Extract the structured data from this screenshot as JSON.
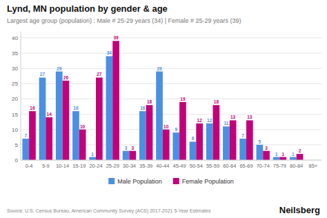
{
  "chart_data": {
    "type": "bar",
    "title": "Lynd, MN population by gender & age",
    "subtitle": "Largest age group (population) : Male # 25-29 years (34) | Female # 25-29 years (39)",
    "categories": [
      "0-4",
      "5-9",
      "10-14",
      "15-19",
      "20-24",
      "25-29",
      "30-34",
      "35-39",
      "40-44",
      "45-49",
      "50-54",
      "55-59",
      "60-64",
      "65-69",
      "70-74",
      "75-79",
      "80-84",
      "85+"
    ],
    "series": [
      {
        "name": "Male Population",
        "color": "#4B8FE2",
        "values": [
          7,
          27,
          29,
          16,
          1,
          34,
          3,
          16,
          29,
          9,
          6,
          12,
          11,
          7,
          5,
          1,
          1,
          0
        ]
      },
      {
        "name": "Female Population",
        "color": "#C2007A",
        "values": [
          16,
          14,
          26,
          10,
          27,
          39,
          3,
          18,
          10,
          19,
          12,
          18,
          13,
          13,
          3,
          1,
          2,
          0
        ]
      }
    ],
    "ylim": [
      0,
      42
    ],
    "yticks": [
      0,
      5,
      10,
      15,
      20,
      25,
      30,
      35,
      40
    ],
    "grid": true,
    "data_labels": true,
    "legend": "bottom",
    "annotations": [
      "Source: U.S. Census Bureau, American Community Survey (ACS) 2017-2021 5-Year Estimates",
      "Neilsberg"
    ]
  }
}
